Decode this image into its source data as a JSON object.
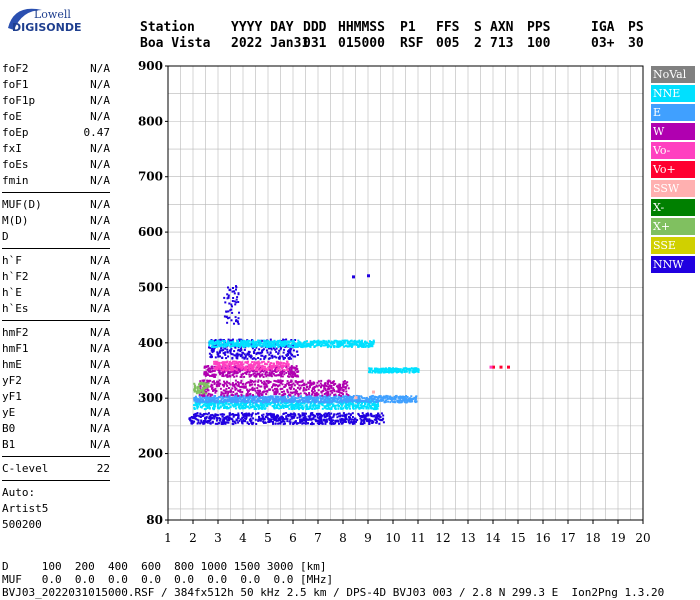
{
  "logo": {
    "top": "Lowell",
    "bottom": "DIGISONDE"
  },
  "header": {
    "columns": [
      {
        "label": "Station",
        "value": "Boa Vista"
      },
      {
        "label": "YYYY DAY",
        "value": "2022 Jan31"
      },
      {
        "label": "DDD",
        "value": "031"
      },
      {
        "label": "HHMMSS",
        "value": "015000"
      },
      {
        "label": "P1",
        "value": "RSF"
      },
      {
        "label": "FFS",
        "value": "005"
      },
      {
        "label": "S",
        "value": "2"
      },
      {
        "label": "AXN",
        "value": "713"
      },
      {
        "label": "PPS",
        "value": "100"
      },
      {
        "label": "IGA",
        "value": "03+"
      },
      {
        "label": "PS",
        "value": "30"
      }
    ]
  },
  "params": {
    "group1": [
      {
        "name": "foF2",
        "value": "N/A"
      },
      {
        "name": "foF1",
        "value": "N/A"
      },
      {
        "name": "foF1p",
        "value": "N/A"
      },
      {
        "name": "foE",
        "value": "N/A"
      },
      {
        "name": "foEp",
        "value": "0.47"
      },
      {
        "name": "fxI",
        "value": "N/A"
      },
      {
        "name": "foEs",
        "value": "N/A"
      },
      {
        "name": "fmin",
        "value": "N/A"
      }
    ],
    "group2": [
      {
        "name": "MUF(D)",
        "value": "N/A"
      },
      {
        "name": "M(D)",
        "value": "N/A"
      },
      {
        "name": "D",
        "value": "N/A"
      }
    ],
    "group3": [
      {
        "name": "h`F",
        "value": "N/A"
      },
      {
        "name": "h`F2",
        "value": "N/A"
      },
      {
        "name": "h`E",
        "value": "N/A"
      },
      {
        "name": "h`Es",
        "value": "N/A"
      }
    ],
    "group4": [
      {
        "name": "hmF2",
        "value": "N/A"
      },
      {
        "name": "hmF1",
        "value": "N/A"
      },
      {
        "name": "hmE",
        "value": "N/A"
      },
      {
        "name": "yF2",
        "value": "N/A"
      },
      {
        "name": "yF1",
        "value": "N/A"
      },
      {
        "name": "yE",
        "value": "N/A"
      },
      {
        "name": "B0",
        "value": "N/A"
      },
      {
        "name": "B1",
        "value": "N/A"
      }
    ],
    "group5": [
      {
        "name": "C-level",
        "value": "22"
      }
    ],
    "auto": [
      "Auto:",
      "Artist5",
      "500200"
    ]
  },
  "legend": [
    {
      "label": "NoVal",
      "color": "#808080"
    },
    {
      "label": "NNE",
      "color": "#00e0ff"
    },
    {
      "label": "E",
      "color": "#40a0ff"
    },
    {
      "label": "W",
      "color": "#b000b0"
    },
    {
      "label": "Vo-",
      "color": "#ff40c0"
    },
    {
      "label": "Vo+",
      "color": "#ff0030"
    },
    {
      "label": "SSW",
      "color": "#ffb0b0"
    },
    {
      "label": "X-",
      "color": "#008000"
    },
    {
      "label": "X+",
      "color": "#80c060"
    },
    {
      "label": "SSE",
      "color": "#d0d000"
    },
    {
      "label": "NNW",
      "color": "#2000e0"
    }
  ],
  "footer": {
    "d_row": "D     100  200  400  600  800 1000 1500 3000 [km]",
    "muf_row": "MUF   0.0  0.0  0.0  0.0  0.0  0.0  0.0  0.0 [MHz]",
    "info": "BVJ03_2022031015000.RSF / 384fx512h 50 kHz 2.5 km / DPS-4D BVJ03 003 / 2.8 N 299.3 E  Ion2Png 1.3.20"
  },
  "chart_data": {
    "type": "scatter",
    "xlim": [
      1,
      20
    ],
    "ylim": [
      80,
      900
    ],
    "xticks": [
      1,
      2,
      3,
      4,
      5,
      6,
      7,
      8,
      9,
      10,
      11,
      12,
      13,
      14,
      15,
      16,
      17,
      18,
      19,
      20
    ],
    "yticks": [
      80,
      200,
      300,
      400,
      500,
      600,
      700,
      800,
      900
    ],
    "grid": true,
    "traces": [
      {
        "polarization": "NNW",
        "color": "#2000e0",
        "x_range": [
          1.8,
          9.6
        ],
        "y_center": 265,
        "spread": 10
      },
      {
        "polarization": "NNE",
        "color": "#00e0ff",
        "x_range": [
          2.0,
          9.4
        ],
        "y_center": 290,
        "spread": 8
      },
      {
        "polarization": "E",
        "color": "#40a0ff",
        "x_range": [
          2.0,
          10.9
        ],
        "y_center": 300,
        "spread": 6
      },
      {
        "polarization": "W",
        "color": "#b000b0",
        "x_range": [
          2.2,
          8.2
        ],
        "y_center": 320,
        "spread": 14
      },
      {
        "polarization": "W",
        "color": "#b000b0",
        "x_range": [
          2.4,
          6.2
        ],
        "y_center": 350,
        "spread": 10
      },
      {
        "polarization": "NNW",
        "color": "#2000e0",
        "x_range": [
          2.6,
          6.2
        ],
        "y_center": 390,
        "spread": 18
      },
      {
        "polarization": "NNE",
        "color": "#00e0ff",
        "x_range": [
          2.6,
          9.2
        ],
        "y_center": 400,
        "spread": 6
      },
      {
        "polarization": "Vo-",
        "color": "#ff40c0",
        "x_range": [
          2.8,
          5.8
        ],
        "y_center": 360,
        "spread": 8
      },
      {
        "polarization": "NNE",
        "color": "#00e0ff",
        "x_range": [
          9.0,
          11.0
        ],
        "y_center": 352,
        "spread": 4
      },
      {
        "polarization": "NNW",
        "color": "#2000e0",
        "x_range": [
          3.2,
          3.8
        ],
        "y_center": 470,
        "spread": 35
      },
      {
        "polarization": "X+",
        "color": "#80c060",
        "x_range": [
          2.0,
          2.6
        ],
        "y_center": 320,
        "spread": 10
      }
    ],
    "points": [
      {
        "x": 8.4,
        "y": 520,
        "color": "#2000e0"
      },
      {
        "x": 9.0,
        "y": 522,
        "color": "#2000e0"
      },
      {
        "x": 14.0,
        "y": 357,
        "color": "#ff0030"
      },
      {
        "x": 14.3,
        "y": 357,
        "color": "#ff0030"
      },
      {
        "x": 14.6,
        "y": 357,
        "color": "#ff0030"
      },
      {
        "x": 13.9,
        "y": 357,
        "color": "#ff40c0"
      },
      {
        "x": 8.5,
        "y": 302,
        "color": "#ffb0b0"
      },
      {
        "x": 9.2,
        "y": 312,
        "color": "#ffb0b0"
      }
    ]
  }
}
